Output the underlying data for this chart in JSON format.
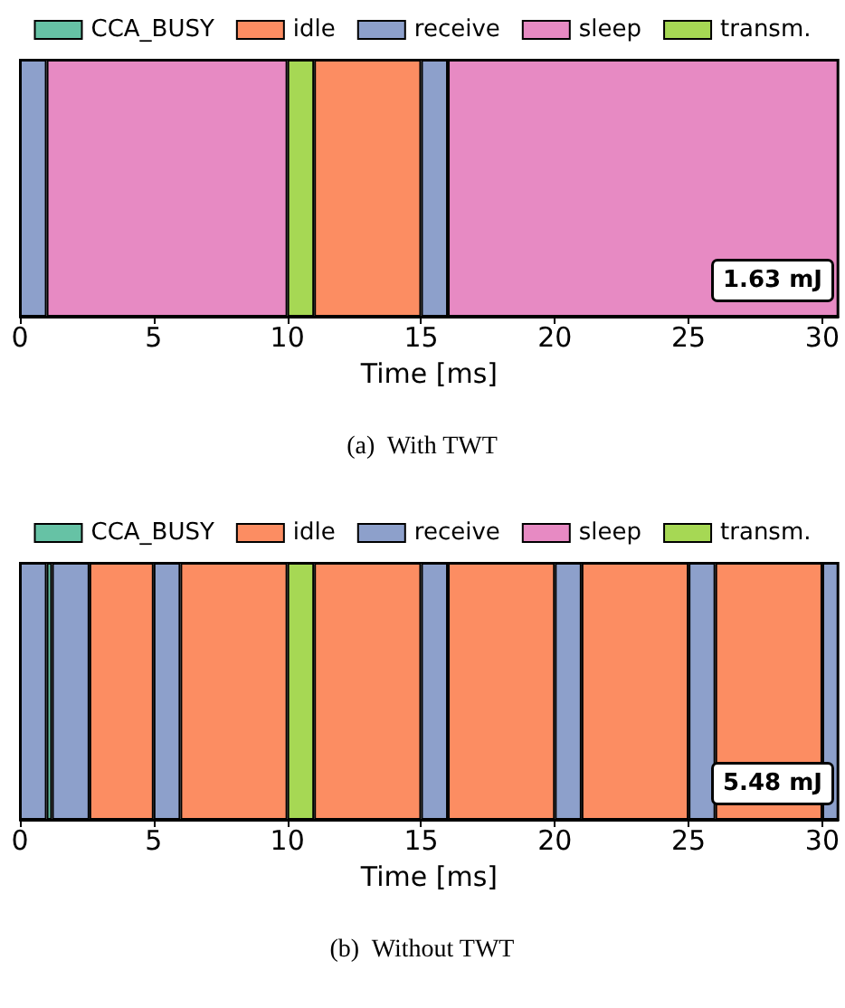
{
  "chart_data": [
    {
      "type": "bar",
      "orientation": "horizontal",
      "stacked": true,
      "categories": [
        null
      ],
      "xlabel": "Time [ms]",
      "xlim": [
        0,
        30.6
      ],
      "xticks": [
        0,
        5,
        10,
        15,
        20,
        25,
        30
      ],
      "legend": "top",
      "grid": false,
      "series": [
        {
          "name": "receive",
          "color": "#8da0cb",
          "values": [
            1
          ]
        },
        {
          "name": "sleep",
          "color": "#e78ac3",
          "values": [
            9
          ]
        },
        {
          "name": "transm.",
          "color": "#a6d854",
          "values": [
            1
          ]
        },
        {
          "name": "idle",
          "color": "#fc8d62",
          "values": [
            4
          ]
        },
        {
          "color": "#8da0cb",
          "values": [
            1
          ]
        },
        {
          "color": "#e78ac3",
          "values": [
            14.6
          ]
        },
        {
          "name": "CCA_BUSY",
          "color": "#66c2a5",
          "values": [
            0
          ]
        }
      ],
      "annotations": [
        "1.63 mJ",
        "(a)  With TWT"
      ]
    },
    {
      "type": "bar",
      "orientation": "horizontal",
      "stacked": true,
      "categories": [
        null
      ],
      "xlabel": "Time [ms]",
      "xlim": [
        0,
        30.6
      ],
      "xticks": [
        0,
        5,
        10,
        15,
        20,
        25,
        30
      ],
      "legend": "top",
      "grid": false,
      "series": [
        {
          "name": "receive",
          "color": "#8da0cb",
          "values": [
            1
          ]
        },
        {
          "name": "CCA_BUSY",
          "color": "#66c2a5",
          "values": [
            0.2
          ]
        },
        {
          "color": "#8da0cb",
          "values": [
            1.4
          ]
        },
        {
          "name": "idle",
          "color": "#fc8d62",
          "values": [
            2.4
          ]
        },
        {
          "color": "#8da0cb",
          "values": [
            1
          ]
        },
        {
          "color": "#fc8d62",
          "values": [
            4
          ]
        },
        {
          "name": "transm.",
          "color": "#a6d854",
          "values": [
            1
          ]
        },
        {
          "color": "#fc8d62",
          "values": [
            4
          ]
        },
        {
          "color": "#8da0cb",
          "values": [
            1
          ]
        },
        {
          "color": "#fc8d62",
          "values": [
            4
          ]
        },
        {
          "color": "#8da0cb",
          "values": [
            1
          ]
        },
        {
          "color": "#fc8d62",
          "values": [
            4
          ]
        },
        {
          "color": "#8da0cb",
          "values": [
            1
          ]
        },
        {
          "color": "#fc8d62",
          "values": [
            4
          ]
        },
        {
          "color": "#8da0cb",
          "values": [
            0.6
          ]
        },
        {
          "name": "sleep",
          "color": "#e78ac3",
          "values": [
            0
          ]
        }
      ],
      "annotations": [
        "5.48 mJ",
        "(b)  Without TWT"
      ]
    }
  ]
}
